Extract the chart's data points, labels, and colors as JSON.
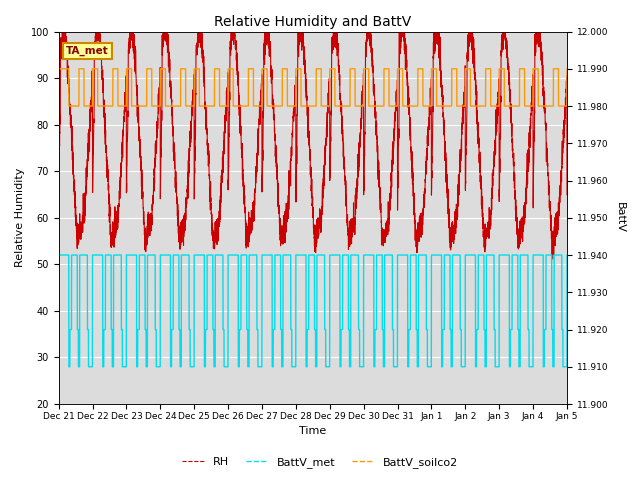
{
  "title": "Relative Humidity and BattV",
  "ylabel_left": "Relative Humidity",
  "ylabel_right": "BattV",
  "xlabel": "Time",
  "ylim_left": [
    20,
    100
  ],
  "ylim_right": [
    11.9,
    12.0
  ],
  "bg_color": "#DCDCDC",
  "annotation_text": "TA_met",
  "annotation_bg": "#FFFF99",
  "annotation_border": "#CC8800",
  "line_RH_color": "#CC0000",
  "line_battv_met_color": "#00DDEE",
  "line_battv_soilco2_color": "#FF9900",
  "legend_labels": [
    "RH",
    "BattV_met",
    "BattV_soilco2"
  ],
  "x_tick_labels": [
    "Dec 21",
    "Dec 22",
    "Dec 23",
    "Dec 24",
    "Dec 25",
    "Dec 26",
    "Dec 27",
    "Dec 28",
    "Dec 29",
    "Dec 30",
    "Dec 31",
    "Jan 1",
    "Jan 2",
    "Jan 3",
    "Jan 4",
    "Jan 5"
  ],
  "right_yticks": [
    11.9,
    11.91,
    11.92,
    11.93,
    11.94,
    11.95,
    11.96,
    11.97,
    11.98,
    11.99,
    12.0
  ],
  "right_ytick_labels": [
    "11.900",
    "11.910",
    "11.920",
    "11.930",
    "11.940",
    "11.950",
    "11.960",
    "11.970",
    "11.980",
    "11.990",
    "12.000"
  ],
  "n_days": 15,
  "pts_per_day": 288
}
